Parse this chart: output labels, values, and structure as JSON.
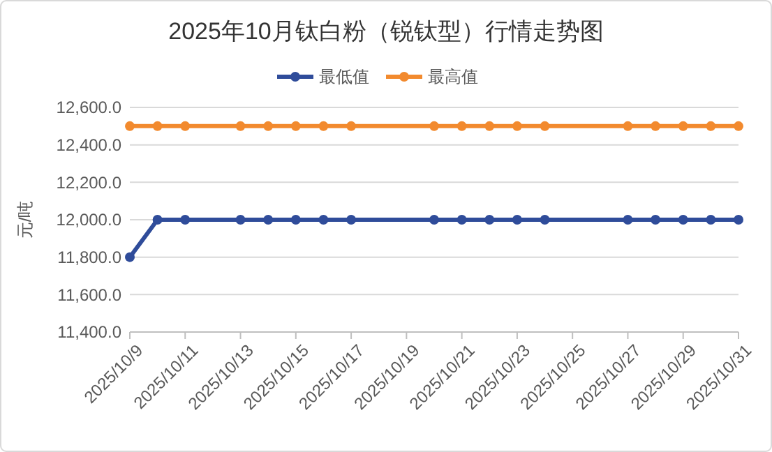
{
  "chart_data": {
    "type": "line",
    "title": "2025年10月钛白粉（锐钛型）行情走势图",
    "ylabel": "元/吨",
    "x": [
      "2025-10-09",
      "2025-10-10",
      "2025-10-11",
      "2025-10-13",
      "2025-10-14",
      "2025-10-15",
      "2025-10-16",
      "2025-10-17",
      "2025-10-20",
      "2025-10-21",
      "2025-10-22",
      "2025-10-23",
      "2025-10-24",
      "2025-10-27",
      "2025-10-28",
      "2025-10-29",
      "2025-10-30",
      "2025-10-31"
    ],
    "xlim": [
      "2025-10-09",
      "2025-10-31"
    ],
    "xticks": [
      {
        "value": "2025-10-09",
        "label": "2025/10/9"
      },
      {
        "value": "2025-10-11",
        "label": "2025/10/11"
      },
      {
        "value": "2025-10-13",
        "label": "2025/10/13"
      },
      {
        "value": "2025-10-15",
        "label": "2025/10/15"
      },
      {
        "value": "2025-10-17",
        "label": "2025/10/17"
      },
      {
        "value": "2025-10-19",
        "label": "2025/10/19"
      },
      {
        "value": "2025-10-21",
        "label": "2025/10/21"
      },
      {
        "value": "2025-10-23",
        "label": "2025/10/23"
      },
      {
        "value": "2025-10-25",
        "label": "2025/10/25"
      },
      {
        "value": "2025-10-27",
        "label": "2025/10/27"
      },
      {
        "value": "2025-10-29",
        "label": "2025/10/29"
      },
      {
        "value": "2025-10-31",
        "label": "2025/10/31"
      }
    ],
    "ylim": [
      11400,
      12600
    ],
    "yticks": [
      {
        "value": 11400,
        "label": "11,400.0"
      },
      {
        "value": 11600,
        "label": "11,600.0"
      },
      {
        "value": 11800,
        "label": "11,800.0"
      },
      {
        "value": 12000,
        "label": "12,000.0"
      },
      {
        "value": 12200,
        "label": "12,200.0"
      },
      {
        "value": 12400,
        "label": "12,400.0"
      },
      {
        "value": 12600,
        "label": "12,600.0"
      }
    ],
    "grid": "y",
    "legend": "top",
    "marker": "circle",
    "line_style": "solid",
    "series": [
      {
        "name": "最低值",
        "color": "#2f4c9a",
        "values": [
          11800,
          12000,
          12000,
          12000,
          12000,
          12000,
          12000,
          12000,
          12000,
          12000,
          12000,
          12000,
          12000,
          12000,
          12000,
          12000,
          12000,
          12000
        ]
      },
      {
        "name": "最高值",
        "color": "#f28a2e",
        "values": [
          12500,
          12500,
          12500,
          12500,
          12500,
          12500,
          12500,
          12500,
          12500,
          12500,
          12500,
          12500,
          12500,
          12500,
          12500,
          12500,
          12500,
          12500
        ]
      }
    ]
  }
}
